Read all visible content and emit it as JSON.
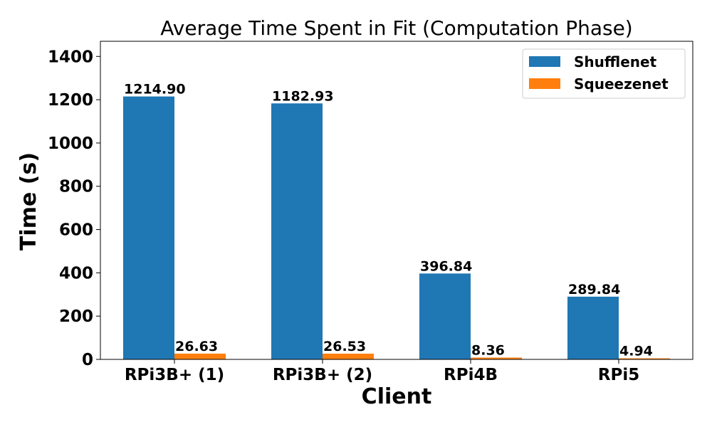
{
  "chart_data": {
    "type": "bar",
    "title": "Average Time Spent in Fit (Computation Phase)",
    "xlabel": "Client",
    "ylabel": "Time (s)",
    "categories": [
      "RPi3B+ (1)",
      "RPi3B+ (2)",
      "RPi4B",
      "RPi5"
    ],
    "series": [
      {
        "name": "Shufflenet",
        "values": [
          1214.9,
          1182.93,
          396.84,
          289.84
        ],
        "labels": [
          "1214.90",
          "1182.93",
          "396.84",
          "289.84"
        ],
        "color": "#1f77b4"
      },
      {
        "name": "Squeezenet",
        "values": [
          26.63,
          26.53,
          8.36,
          4.94
        ],
        "labels": [
          "26.63",
          "26.53",
          "8.36",
          "4.94"
        ],
        "color": "#ff7f0e"
      }
    ],
    "ylim": [
      0,
      1470
    ],
    "yticks": [
      0,
      200,
      400,
      600,
      800,
      1000,
      1200,
      1400
    ],
    "ytick_labels": [
      "0",
      "200",
      "400",
      "600",
      "800",
      "1000",
      "1200",
      "1400"
    ],
    "legend_position": "top-right",
    "grid": false
  }
}
